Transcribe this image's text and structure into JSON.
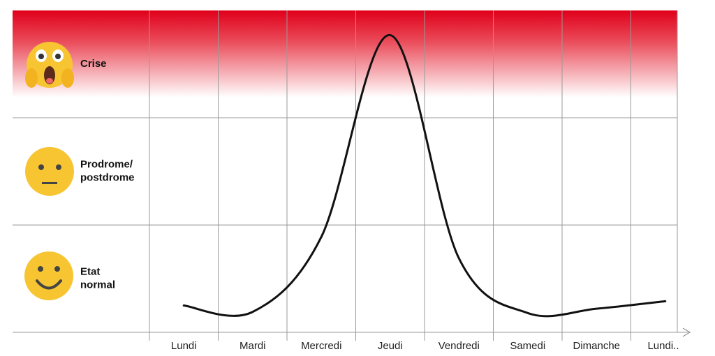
{
  "chart_data": {
    "type": "line",
    "categories": [
      "Lundi",
      "Mardi",
      "Mercredi",
      "Jeudi",
      "Vendredi",
      "Samedi",
      "Dimanche",
      "Lundi.."
    ],
    "series": [
      {
        "name": null,
        "color": "#111111",
        "values": [
          0.25,
          0.19,
          0.89,
          2.77,
          0.69,
          0.18,
          0.22,
          0.29
        ]
      }
    ],
    "ylim": [
      0,
      3
    ],
    "yticks": [
      {
        "value": 0.5,
        "label": "Etat\nnormal"
      },
      {
        "value": 1.5,
        "label": "Prodrome/\npostdrome"
      },
      {
        "value": 2.5,
        "label": "Crise"
      }
    ],
    "grid": true
  }
}
